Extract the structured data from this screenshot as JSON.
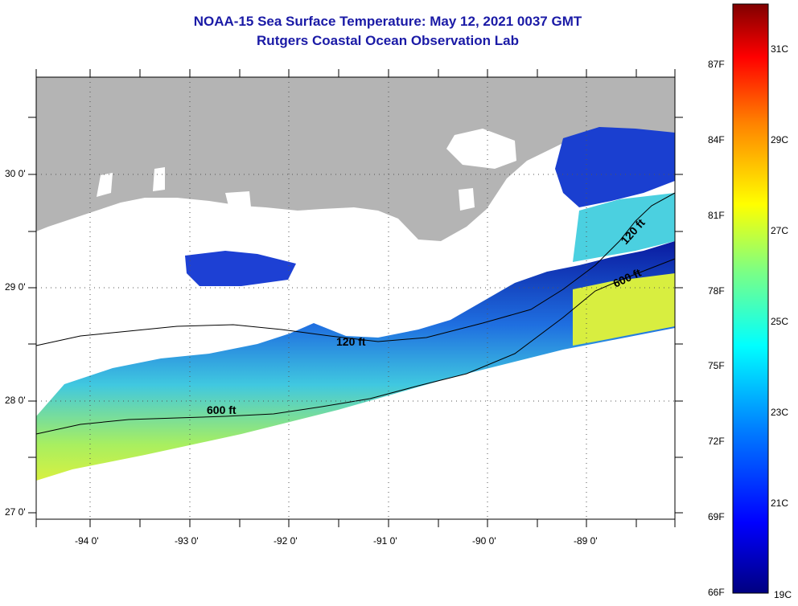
{
  "title": "NOAA-15 Sea Surface Temperature:  May 12, 2021 0037 GMT",
  "subtitle": "Rutgers Coastal Ocean Observation Lab",
  "map": {
    "lat_labels": [
      "30 0'",
      "29 0'",
      "28 0'",
      "27 0'"
    ],
    "lon_labels": [
      "-94 0'",
      "-93 0'",
      "-92 0'",
      "-91 0'",
      "-90 0'",
      "-89 0'"
    ],
    "contours": [
      "120 ft",
      "600 ft",
      "120 ft",
      "600 ft"
    ],
    "colors": {
      "land": "#b4b4b4",
      "cloud": "#ffffff",
      "grid": "#555555"
    }
  },
  "colorbar": {
    "fahrenheit": [
      "87F",
      "84F",
      "81F",
      "78F",
      "75F",
      "72F",
      "69F",
      "66F"
    ],
    "celsius": [
      "31C",
      "29C",
      "27C",
      "25C",
      "23C",
      "21C",
      "19C"
    ],
    "colors": [
      "#000080",
      "#0000ff",
      "#0080ff",
      "#00ffff",
      "#80ff80",
      "#ffff00",
      "#ff8000",
      "#ff0000",
      "#800000"
    ]
  }
}
